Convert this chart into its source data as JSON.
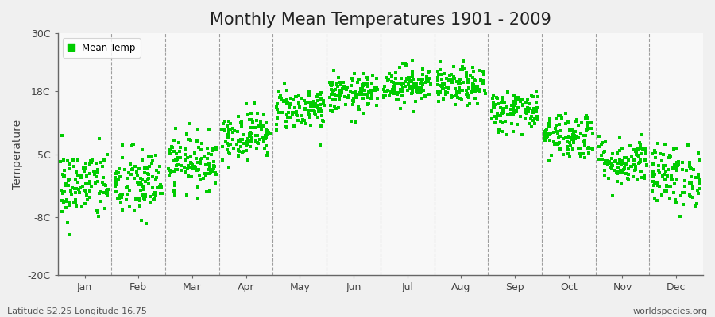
{
  "title": "Monthly Mean Temperatures 1901 - 2009",
  "ylabel": "Temperature",
  "yticks": [
    -20,
    -8,
    5,
    18,
    30
  ],
  "ytick_labels": [
    "-20C",
    "-8C",
    "5C",
    "18C",
    "30C"
  ],
  "ylim": [
    -20,
    30
  ],
  "month_labels": [
    "Jan",
    "Feb",
    "Mar",
    "Apr",
    "May",
    "Jun",
    "Jul",
    "Aug",
    "Sep",
    "Oct",
    "Nov",
    "Dec"
  ],
  "dot_color": "#00CC00",
  "dot_size": 7,
  "background_color": "#F0F0F0",
  "plot_bg_color": "#F8F8F8",
  "legend_label": "Mean Temp",
  "footer_left": "Latitude 52.25 Longitude 16.75",
  "footer_right": "worldspecies.org",
  "title_fontsize": 15,
  "label_fontsize": 10,
  "tick_fontsize": 9,
  "monthly_means": [
    -1.5,
    -1.2,
    3.5,
    9.0,
    14.5,
    17.5,
    19.5,
    19.0,
    14.0,
    9.0,
    3.5,
    0.5
  ],
  "monthly_stds": [
    3.8,
    3.8,
    2.8,
    2.5,
    2.2,
    2.0,
    2.0,
    2.0,
    2.2,
    2.5,
    2.5,
    3.2
  ],
  "n_years": 109,
  "random_seed": 42
}
